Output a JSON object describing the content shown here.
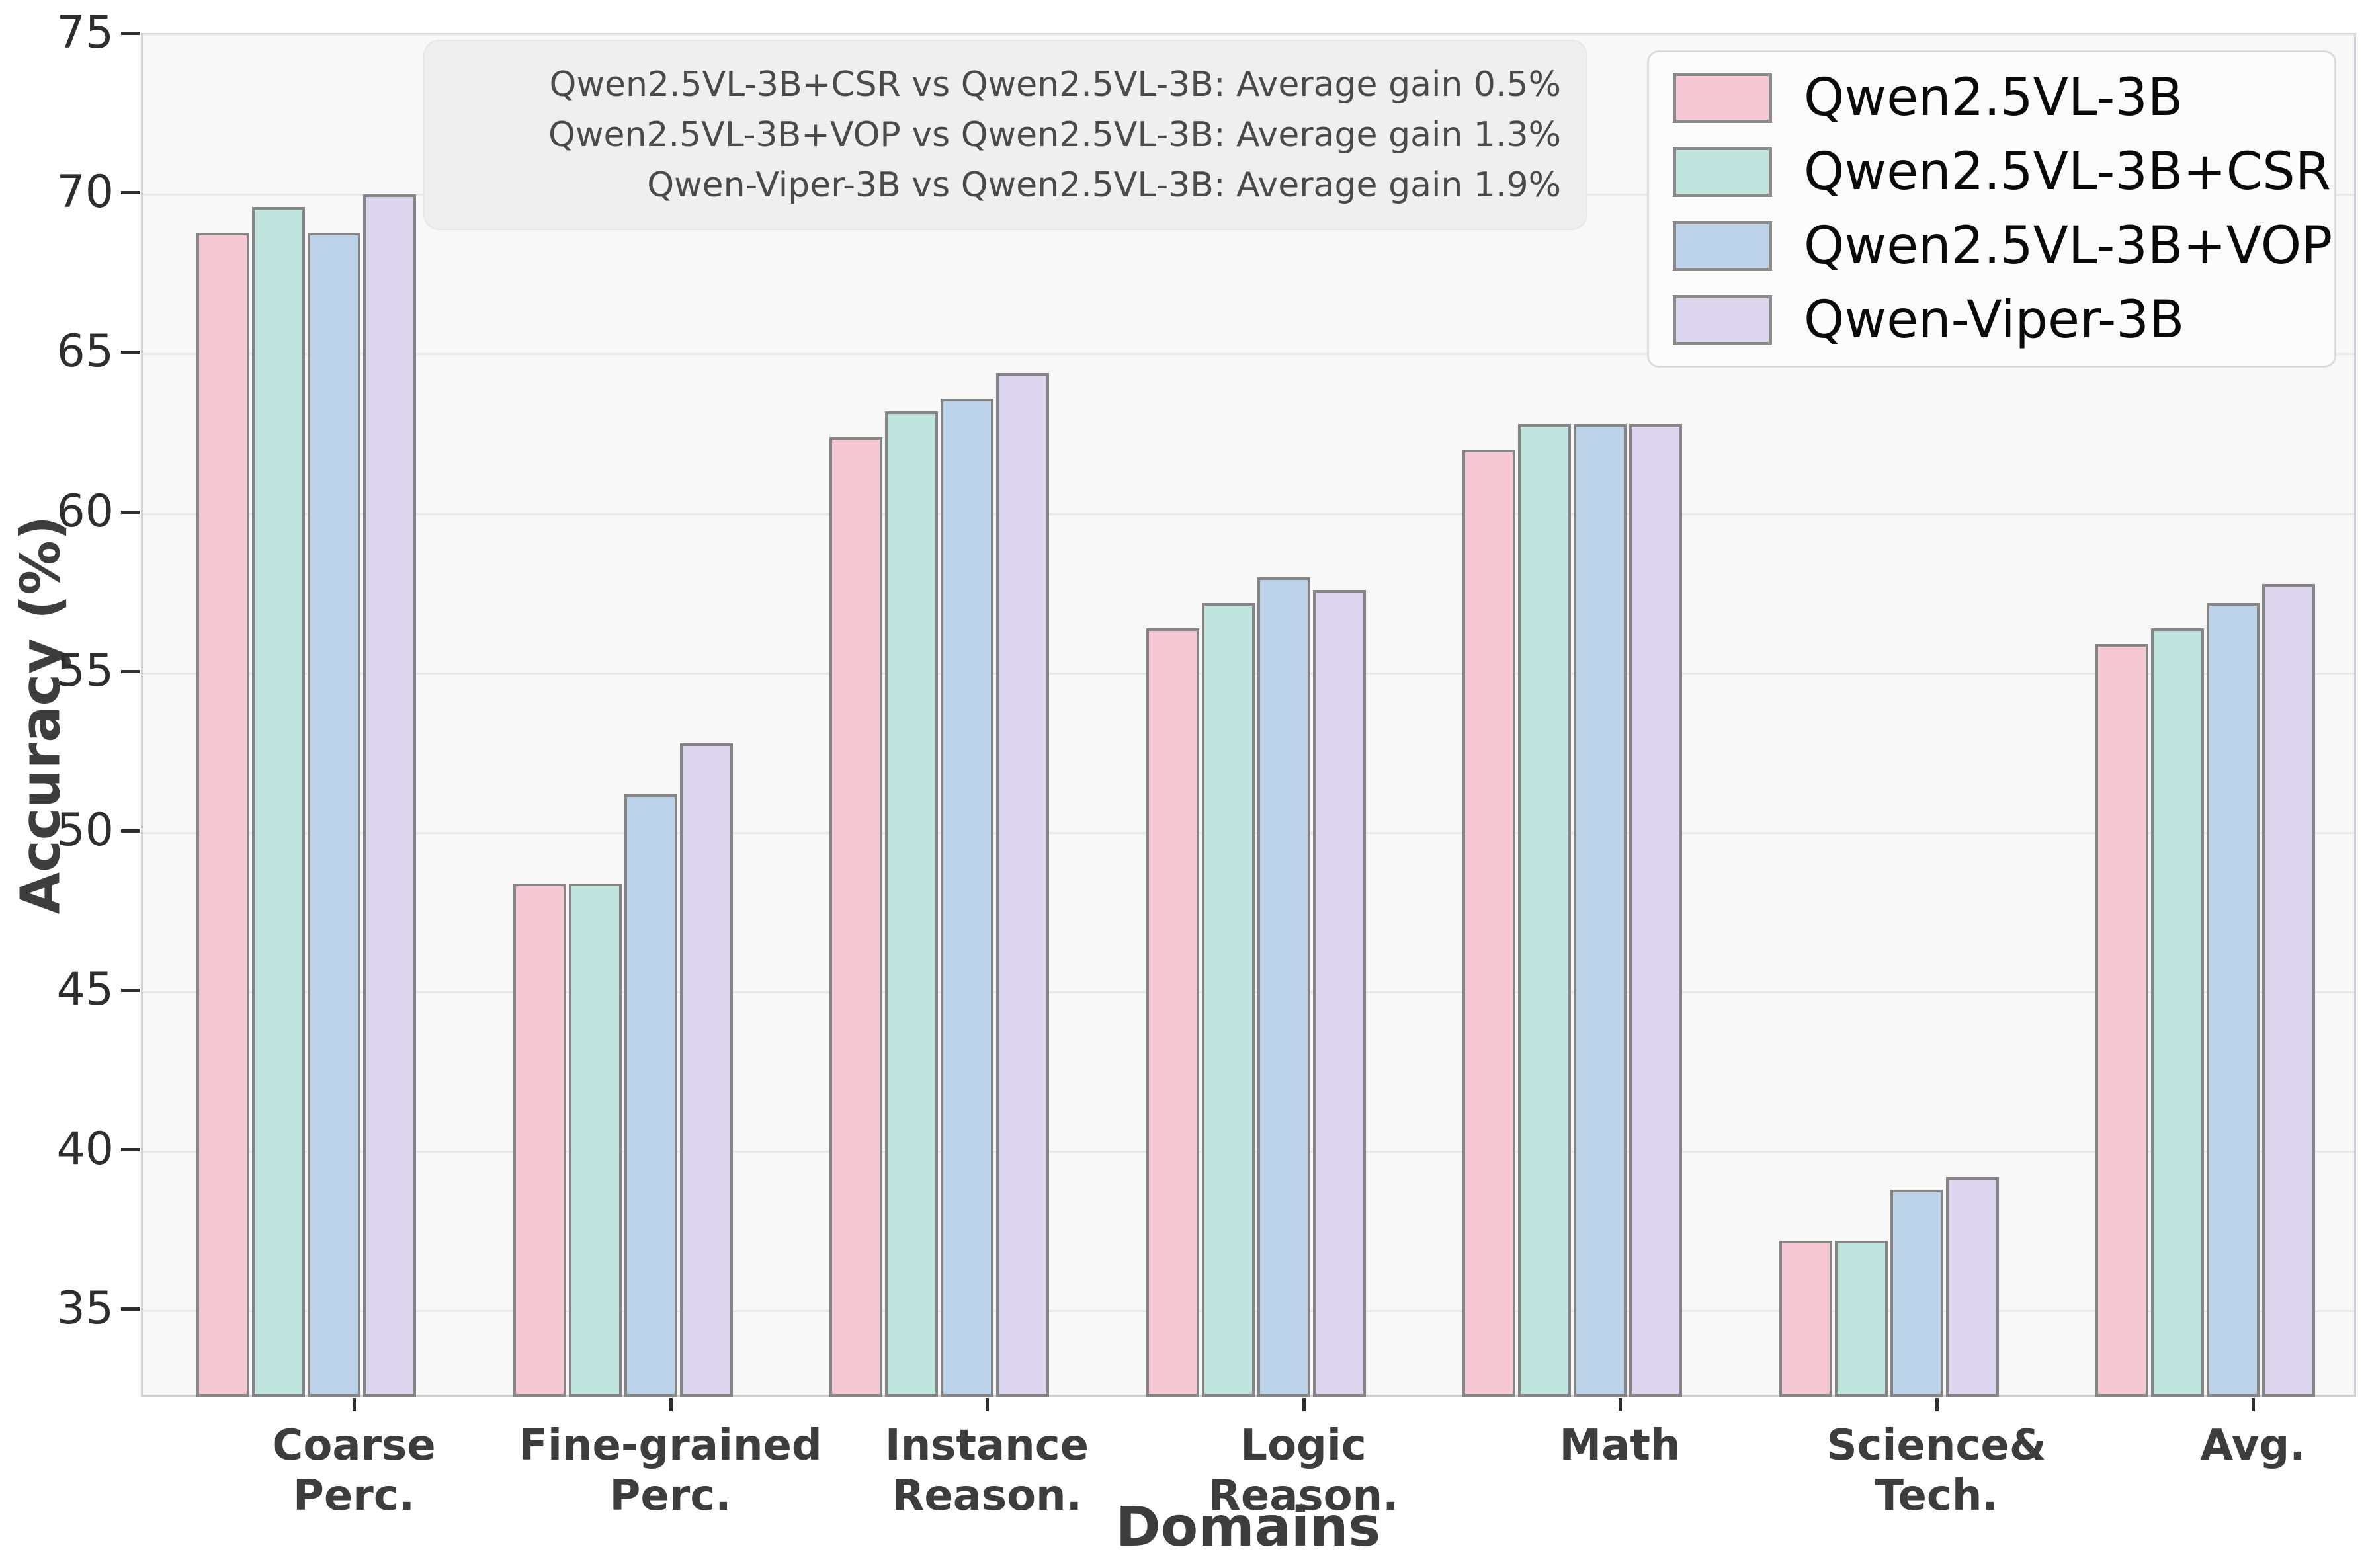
{
  "chart_data": {
    "type": "bar",
    "title": "",
    "xlabel": "Domains",
    "ylabel": "Accuracy (%)",
    "ylim": [
      32.25,
      75
    ],
    "yticks": [
      35,
      40,
      45,
      50,
      55,
      60,
      65,
      70,
      75
    ],
    "grid": "horizontal",
    "legend_position": "upper right",
    "bar_edge_color": "#858585",
    "plot_bg_color": "#f8f8f8",
    "categories": [
      "Coarse\nPerc.",
      "Fine-grained\nPerc.",
      "Instance\nReason.",
      "Logic\nReason.",
      "Math",
      "Science&\nTech.",
      "Avg."
    ],
    "series": [
      {
        "name": "Qwen2.5VL-3B",
        "color": "#f5c8d3",
        "values": [
          68.8,
          48.4,
          62.4,
          56.4,
          62.0,
          37.2,
          55.9
        ]
      },
      {
        "name": "Qwen2.5VL-3B+CSR",
        "color": "#c0e5df",
        "values": [
          69.6,
          48.4,
          63.2,
          57.2,
          62.8,
          37.2,
          56.4
        ]
      },
      {
        "name": "Qwen2.5VL-3B+VOP",
        "color": "#bcd2e8",
        "values": [
          68.8,
          51.2,
          63.6,
          58.0,
          62.8,
          38.8,
          57.2
        ]
      },
      {
        "name": "Qwen-Viper-3B",
        "color": "#ddd5ed",
        "values": [
          70.0,
          52.8,
          64.4,
          57.6,
          62.8,
          39.2,
          57.8
        ]
      }
    ],
    "annotation_lines": [
      "Qwen2.5VL-3B+CSR vs Qwen2.5VL-3B: Average gain 0.5%",
      "Qwen2.5VL-3B+VOP vs Qwen2.5VL-3B: Average gain 1.3%",
      "Qwen-Viper-3B vs Qwen2.5VL-3B: Average gain 1.9%"
    ]
  }
}
